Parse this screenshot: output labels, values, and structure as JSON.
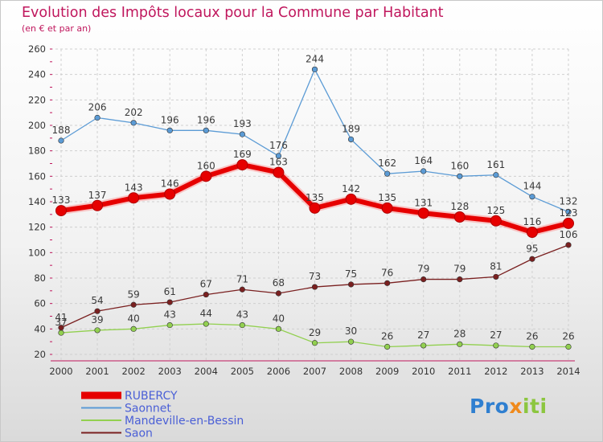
{
  "title": "Evolution des Impôts locaux pour la Commune par Habitant",
  "subtitle": "(en € et par an)",
  "logo": {
    "part1": "Pro",
    "part2": "x",
    "part3": "iti"
  },
  "chart_data": {
    "type": "line",
    "categories": [
      "2000",
      "2001",
      "2002",
      "2003",
      "2004",
      "2005",
      "2006",
      "2007",
      "2008",
      "2009",
      "2010",
      "2011",
      "2012",
      "2013",
      "2014"
    ],
    "ylim": [
      20,
      260
    ],
    "yticks": [
      20,
      40,
      60,
      80,
      100,
      120,
      140,
      160,
      180,
      200,
      220,
      240,
      260
    ],
    "grid": true,
    "legend_position": "bottom-left",
    "series": [
      {
        "name": "RUBERCY",
        "color": "#e60000",
        "emphasis": true,
        "values": [
          133,
          137,
          143,
          146,
          160,
          169,
          163,
          135,
          142,
          135,
          131,
          128,
          125,
          116,
          123
        ]
      },
      {
        "name": "Saonnet",
        "color": "#5b9bd5",
        "values": [
          188,
          206,
          202,
          196,
          196,
          193,
          176,
          244,
          189,
          162,
          164,
          160,
          161,
          144,
          132
        ]
      },
      {
        "name": "Mandeville-en-Bessin",
        "color": "#92d050",
        "values": [
          37,
          39,
          40,
          43,
          44,
          43,
          40,
          29,
          30,
          26,
          27,
          28,
          27,
          26,
          26
        ]
      },
      {
        "name": "Saon",
        "color": "#7a2020",
        "values": [
          41,
          54,
          59,
          61,
          67,
          71,
          68,
          73,
          75,
          76,
          79,
          79,
          81,
          95,
          106
        ]
      }
    ]
  }
}
